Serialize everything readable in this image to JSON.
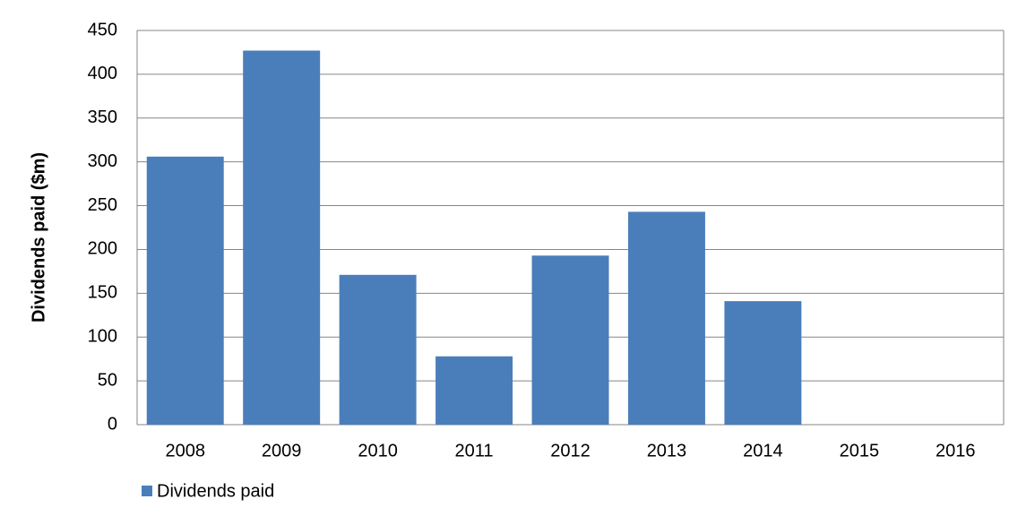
{
  "chart_data": {
    "type": "bar",
    "y_label": "Dividends paid ($m)",
    "categories": [
      "2008",
      "2009",
      "2010",
      "2011",
      "2012",
      "2013",
      "2014",
      "2015",
      "2016"
    ],
    "series": [
      {
        "name": "Dividends paid",
        "color": "#4a7ebb",
        "values": [
          306,
          427,
          171,
          78,
          193,
          243,
          141,
          0,
          0
        ]
      }
    ],
    "ylim": [
      0,
      450
    ],
    "yticks": [
      0,
      50,
      100,
      150,
      200,
      250,
      300,
      350,
      400,
      450
    ],
    "grid": true,
    "legend": "bottom-left"
  }
}
